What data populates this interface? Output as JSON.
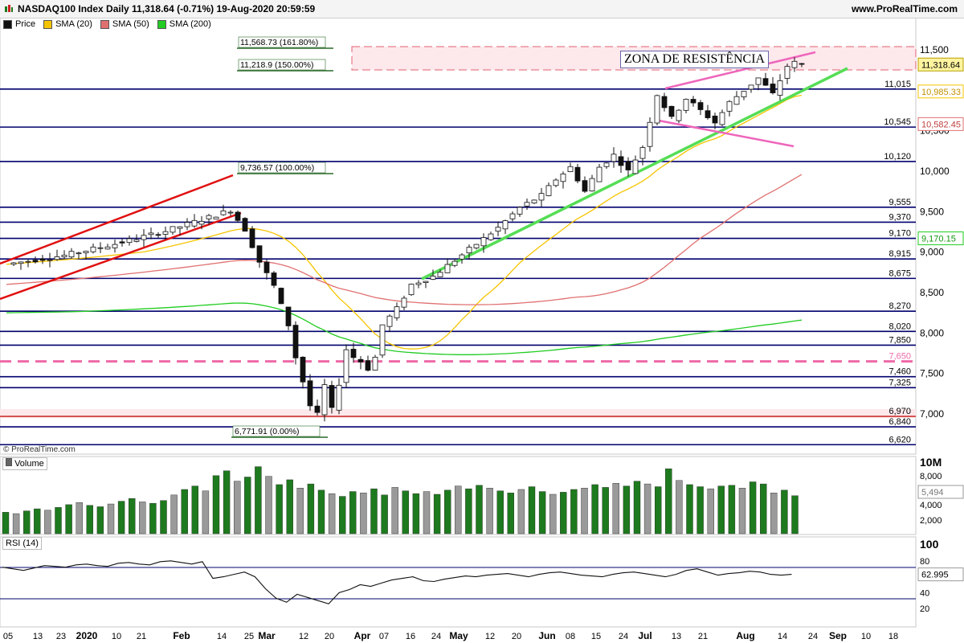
{
  "header": {
    "title": "NASDAQ100 Index Daily 11,318.64 (-0.71%) 19-Aug-2020 20:59:59",
    "brand": "www.ProRealTime.com"
  },
  "legend": [
    {
      "label": "Price",
      "color": "#111111"
    },
    {
      "label": "SMA (20)",
      "color": "#f5c400"
    },
    {
      "label": "SMA (50)",
      "color": "#e07070"
    },
    {
      "label": "SMA (200)",
      "color": "#22cc22"
    }
  ],
  "copyright": "© ProRealTime.com",
  "volume_label": "Volume",
  "rsi_label": "RSI (14)",
  "annotation": "ZONA DE RESISTÊNCIA",
  "chart_data": [
    {
      "type": "candlestick",
      "title": "NASDAQ100 Index Daily",
      "x_ticks": [
        "05",
        "13",
        "23",
        "2020",
        "10",
        "21",
        "Feb",
        "14",
        "25",
        "Mar",
        "12",
        "20",
        "Apr",
        "07",
        "16",
        "24",
        "May",
        "12",
        "20",
        "Jun",
        "08",
        "15",
        "24",
        "Jul",
        "13",
        "21",
        "Aug",
        "14",
        "24",
        "Sep",
        "10",
        "18"
      ],
      "y_ticks": [
        "11,500",
        "11,000",
        "10,500",
        "10,000",
        "9,500",
        "9,000",
        "8,500",
        "8,000",
        "7,500",
        "7,000"
      ],
      "ylim": [
        6550,
        11600
      ],
      "last_price": "11,318.64",
      "price_path": [
        [
          0,
          8850
        ],
        [
          8,
          8960
        ],
        [
          15,
          9100
        ],
        [
          22,
          9260
        ],
        [
          28,
          9430
        ],
        [
          31,
          9520
        ],
        [
          33,
          9280
        ],
        [
          35,
          8880
        ],
        [
          37,
          8580
        ],
        [
          39,
          8100
        ],
        [
          40,
          7700
        ],
        [
          41,
          7400
        ],
        [
          42,
          7100
        ],
        [
          43,
          6990
        ],
        [
          44,
          7350
        ],
        [
          45,
          7050
        ],
        [
          46,
          7380
        ],
        [
          47,
          7800
        ],
        [
          48,
          7700
        ],
        [
          49,
          7650
        ],
        [
          50,
          7560
        ],
        [
          51,
          7700
        ],
        [
          52,
          8100
        ],
        [
          54,
          8300
        ],
        [
          56,
          8600
        ],
        [
          59,
          8700
        ],
        [
          62,
          8900
        ],
        [
          65,
          9100
        ],
        [
          68,
          9300
        ],
        [
          71,
          9550
        ],
        [
          74,
          9700
        ],
        [
          76,
          9900
        ],
        [
          78,
          10050
        ],
        [
          80,
          9750
        ],
        [
          82,
          10050
        ],
        [
          84,
          10200
        ],
        [
          86,
          10000
        ],
        [
          88,
          10300
        ],
        [
          90,
          10950
        ],
        [
          92,
          10650
        ],
        [
          94,
          10900
        ],
        [
          96,
          10750
        ],
        [
          98,
          10600
        ],
        [
          100,
          10850
        ],
        [
          102,
          11000
        ],
        [
          104,
          11150
        ],
        [
          106,
          10950
        ],
        [
          108,
          11300
        ],
        [
          109,
          11340
        ],
        [
          110,
          11318
        ]
      ],
      "levels": [
        {
          "value": 11015,
          "label": "11,015",
          "style": "solid",
          "color": "#00006e"
        },
        {
          "value": 10545,
          "label": "10,545",
          "style": "solid",
          "color": "#00006e"
        },
        {
          "value": 10120,
          "label": "10,120",
          "style": "solid",
          "color": "#00006e"
        },
        {
          "value": 9555,
          "label": "9,555",
          "style": "solid",
          "color": "#00006e"
        },
        {
          "value": 9370,
          "label": "9,370",
          "style": "solid",
          "color": "#00006e"
        },
        {
          "value": 9170,
          "label": "9,170",
          "style": "solid",
          "color": "#00006e"
        },
        {
          "value": 8915,
          "label": "8,915",
          "style": "solid",
          "color": "#00006e"
        },
        {
          "value": 8675,
          "label": "8,675",
          "style": "solid",
          "color": "#00006e"
        },
        {
          "value": 8270,
          "label": "8,270",
          "style": "solid",
          "color": "#00006e"
        },
        {
          "value": 8020,
          "label": "8,020",
          "style": "solid",
          "color": "#00006e"
        },
        {
          "value": 7850,
          "label": "7,850",
          "style": "solid",
          "color": "#00006e"
        },
        {
          "value": 7650,
          "label": "7,650",
          "style": "dashed",
          "color": "#ee6aa7"
        },
        {
          "value": 7460,
          "label": "7,460",
          "style": "solid",
          "color": "#00006e"
        },
        {
          "value": 7325,
          "label": "7,325",
          "style": "solid",
          "color": "#00006e"
        },
        {
          "value": 6970,
          "label": "6,970",
          "style": "solid",
          "color": "#cc3333"
        },
        {
          "value": 6840,
          "label": "6,840",
          "style": "solid",
          "color": "#00006e"
        },
        {
          "value": 6620,
          "label": "6,620",
          "style": "solid",
          "color": "#00006e"
        }
      ],
      "fib_labels": [
        {
          "value": 11568.73,
          "text": "11,568.73 (161.80%)"
        },
        {
          "value": 11218.9,
          "text": "11,218.9 (150.00%)"
        },
        {
          "value": 9736.57,
          "text": "9,736.57 (100.00%)"
        },
        {
          "value": 6771.91,
          "text": "6,771.91 (0.00%)"
        }
      ],
      "sma_values": {
        "sma20": "10,985.33",
        "sma50": "10,582.45",
        "sma200": "9,170.15"
      },
      "resistance_zone": [
        11180,
        11560
      ]
    },
    {
      "type": "bar",
      "title": "Volume",
      "y_ticks": [
        "10M",
        "8,000",
        "6,000",
        "4,000",
        "2,000"
      ],
      "ylim": [
        0,
        10000
      ],
      "last_value": "5,494",
      "values": [
        3100,
        2900,
        3300,
        3600,
        3400,
        3800,
        4200,
        4500,
        4100,
        3900,
        4300,
        4700,
        5100,
        4600,
        4400,
        4800,
        5600,
        6400,
        6900,
        6200,
        8400,
        9100,
        7600,
        8200,
        9700,
        8300,
        7100,
        7800,
        6600,
        7200,
        6300,
        5800,
        5400,
        6100,
        5900,
        6500,
        5600,
        6700,
        6200,
        5800,
        6100,
        5700,
        6300,
        6900,
        6500,
        7000,
        6600,
        6200,
        5900,
        6400,
        6800,
        6100,
        5700,
        6000,
        6400,
        6600,
        7100,
        6700,
        7300,
        6900,
        7600,
        7200,
        6800,
        9400,
        7700,
        7100,
        6800,
        6500,
        6900,
        7000,
        6600,
        7500,
        7200,
        5900,
        6300,
        5494
      ]
    },
    {
      "type": "line",
      "title": "RSI (14)",
      "y_ticks": [
        "100",
        "80",
        "60",
        "40",
        "20"
      ],
      "ylim": [
        0,
        100
      ],
      "last_value": "62.995",
      "values": [
        72,
        70,
        68,
        71,
        74,
        73,
        72,
        75,
        76,
        74,
        73,
        77,
        78,
        76,
        75,
        79,
        80,
        78,
        76,
        79,
        58,
        60,
        63,
        66,
        60,
        45,
        33,
        28,
        38,
        34,
        30,
        26,
        40,
        44,
        50,
        48,
        52,
        56,
        58,
        60,
        55,
        54,
        57,
        59,
        61,
        60,
        62,
        63,
        64,
        62,
        60,
        63,
        65,
        66,
        64,
        62,
        61,
        60,
        63,
        65,
        66,
        64,
        62,
        60,
        63,
        68,
        70,
        66,
        62,
        64,
        65,
        67,
        66,
        63,
        62,
        63
      ]
    }
  ]
}
